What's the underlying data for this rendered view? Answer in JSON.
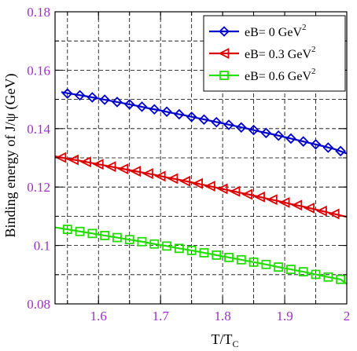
{
  "chart_data": {
    "type": "line",
    "title": "",
    "xlabel": {
      "main": "T/T",
      "sub": "C"
    },
    "ylabel": "Binding energy of J/ψ (GeV)",
    "xlim": [
      1.53,
      2.0
    ],
    "ylim": [
      0.08,
      0.18
    ],
    "xticks": [
      "1.6",
      "1.7",
      "1.8",
      "1.9",
      "2"
    ],
    "yticks": [
      "0.08",
      "0.1",
      "0.12",
      "0.14",
      "0.16",
      "0.18"
    ],
    "xtick_values": [
      1.6,
      1.7,
      1.8,
      1.9,
      2.0
    ],
    "ytick_values": [
      0.08,
      0.1,
      0.12,
      0.14,
      0.16,
      0.18
    ],
    "grid": "dashed",
    "legend_position": "top-right",
    "series": [
      {
        "name": "eB= 0 GeV",
        "name_sup": "2",
        "color": "#0000cc",
        "marker": "diamond",
        "x": [
          1.54,
          1.56,
          1.58,
          1.6,
          1.62,
          1.64,
          1.66,
          1.68,
          1.7,
          1.72,
          1.74,
          1.76,
          1.78,
          1.8,
          1.82,
          1.84,
          1.86,
          1.88,
          1.9,
          1.92,
          1.94,
          1.96,
          1.98,
          2.0
        ],
        "y": [
          0.1525,
          0.1518,
          0.1511,
          0.1503,
          0.1495,
          0.1487,
          0.1479,
          0.147,
          0.1462,
          0.1453,
          0.1445,
          0.1436,
          0.1427,
          0.1418,
          0.1409,
          0.14,
          0.139,
          0.1381,
          0.1371,
          0.1361,
          0.1351,
          0.1341,
          0.133,
          0.1315
        ],
        "marker_x": [
          1.55,
          1.57,
          1.59,
          1.61,
          1.63,
          1.65,
          1.67,
          1.69,
          1.71,
          1.73,
          1.75,
          1.77,
          1.79,
          1.81,
          1.83,
          1.85,
          1.87,
          1.89,
          1.91,
          1.93,
          1.95,
          1.97,
          1.99
        ],
        "marker_y": [
          0.152,
          0.1514,
          0.1507,
          0.1499,
          0.1491,
          0.1483,
          0.1475,
          0.1466,
          0.1458,
          0.1449,
          0.144,
          0.1431,
          0.1422,
          0.1413,
          0.1404,
          0.1395,
          0.1385,
          0.1376,
          0.1366,
          0.1356,
          0.1346,
          0.1335,
          0.1323
        ]
      },
      {
        "name": "eB= 0.3 GeV",
        "name_sup": "2",
        "color": "#dd0000",
        "marker": "triangle-left",
        "x": [
          1.53,
          1.55,
          1.57,
          1.59,
          1.61,
          1.63,
          1.65,
          1.67,
          1.69,
          1.71,
          1.73,
          1.75,
          1.77,
          1.79,
          1.81,
          1.83,
          1.85,
          1.87,
          1.89,
          1.91,
          1.93,
          1.95,
          1.97,
          1.99,
          2.0
        ],
        "y": [
          0.1305,
          0.1297,
          0.129,
          0.1282,
          0.1274,
          0.1266,
          0.1258,
          0.125,
          0.1242,
          0.1233,
          0.1225,
          0.1216,
          0.1207,
          0.1198,
          0.1189,
          0.118,
          0.1171,
          0.1161,
          0.1152,
          0.1142,
          0.1133,
          0.1123,
          0.1113,
          0.1103,
          0.1098
        ],
        "marker_x": [
          1.54,
          1.56,
          1.58,
          1.6,
          1.62,
          1.64,
          1.66,
          1.68,
          1.7,
          1.72,
          1.74,
          1.76,
          1.78,
          1.8,
          1.82,
          1.84,
          1.86,
          1.88,
          1.9,
          1.92,
          1.94,
          1.96,
          1.98
        ],
        "marker_y": [
          0.1301,
          0.1293,
          0.1286,
          0.1278,
          0.127,
          0.1262,
          0.1254,
          0.1246,
          0.1237,
          0.1229,
          0.122,
          0.1212,
          0.1203,
          0.1194,
          0.1185,
          0.1175,
          0.1166,
          0.1157,
          0.1147,
          0.1138,
          0.1128,
          0.1118,
          0.1108
        ]
      },
      {
        "name": "eB= 0.6 GeV",
        "name_sup": "2",
        "color": "#22dd00",
        "marker": "square",
        "x": [
          1.53,
          1.55,
          1.57,
          1.59,
          1.61,
          1.63,
          1.65,
          1.67,
          1.69,
          1.71,
          1.73,
          1.75,
          1.77,
          1.79,
          1.81,
          1.83,
          1.85,
          1.87,
          1.89,
          1.91,
          1.93,
          1.95,
          1.97,
          1.99,
          2.0
        ],
        "y": [
          0.1062,
          0.1055,
          0.1048,
          0.1041,
          0.1034,
          0.1027,
          0.102,
          0.1013,
          0.1005,
          0.0998,
          0.099,
          0.0983,
          0.0975,
          0.0967,
          0.0959,
          0.0951,
          0.0943,
          0.0935,
          0.0926,
          0.0918,
          0.091,
          0.0901,
          0.0892,
          0.0884,
          0.0868
        ],
        "marker_x": [
          1.55,
          1.57,
          1.59,
          1.61,
          1.63,
          1.65,
          1.67,
          1.69,
          1.71,
          1.73,
          1.75,
          1.77,
          1.79,
          1.81,
          1.83,
          1.85,
          1.87,
          1.89,
          1.91,
          1.93,
          1.95,
          1.97,
          1.99
        ],
        "marker_y": [
          0.1055,
          0.1048,
          0.1041,
          0.1034,
          0.1027,
          0.102,
          0.1013,
          0.1005,
          0.0998,
          0.099,
          0.0983,
          0.0975,
          0.0967,
          0.0959,
          0.0951,
          0.0943,
          0.0935,
          0.0926,
          0.0918,
          0.091,
          0.0901,
          0.0892,
          0.0884
        ]
      }
    ]
  }
}
